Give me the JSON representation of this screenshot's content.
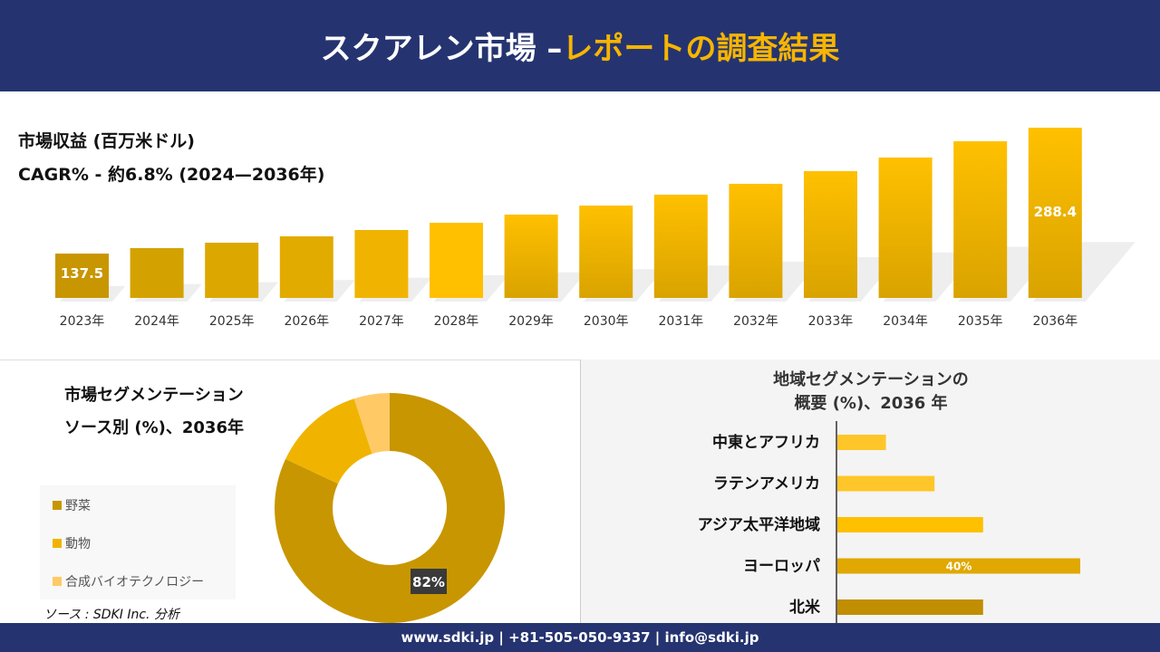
{
  "header": {
    "title_main": "スクアレン市場 –",
    "title_highlight": "レポートの調査結果"
  },
  "revenue": {
    "title": "市場収益 (百万米ドル)",
    "cagr": "CAGR% - 約6.8% (2024—2036年)"
  },
  "chart_data": [
    {
      "type": "bar",
      "categories": [
        "2023年",
        "2024年",
        "2025年",
        "2026年",
        "2027年",
        "2028年",
        "2029年",
        "2030年",
        "2031年",
        "2032年",
        "2033年",
        "2034年",
        "2035年",
        "2036年"
      ],
      "values": [
        137.5,
        144.1,
        150.6,
        158.2,
        165.8,
        174.5,
        184.3,
        195.1,
        208.2,
        221.2,
        236.4,
        252.7,
        272.2,
        288.4
      ],
      "data_labels": {
        "0": "137.5",
        "13": "288.4"
      },
      "ylabel": "",
      "xlabel": ""
    },
    {
      "type": "pie",
      "title": "市場セグメンテーション ソース別 (%)、2036年",
      "labels": [
        "野菜",
        "動物",
        "合成バイオテクノロジー"
      ],
      "values": [
        82,
        13,
        5
      ],
      "colors": [
        "#c89600",
        "#f0b400",
        "#ffc966"
      ],
      "data_label": "82%"
    },
    {
      "type": "bar",
      "orientation": "horizontal",
      "title": "地域セグメンテーションの概要 (%)、2036 年",
      "categories": [
        "中東とアフリカ",
        "ラテンアメリカ",
        "アジア太平洋地域",
        "ヨーロッパ",
        "北米"
      ],
      "values": [
        8,
        16,
        24,
        40,
        24
      ],
      "colors": [
        "#ffc629",
        "#ffc629",
        "#ffc000",
        "#e0a800",
        "#c08e00"
      ],
      "data_label": "40%"
    }
  ],
  "donut": {
    "title_line1": "市場セグメンテーション",
    "title_line2": "ソース別 (%)、2036年"
  },
  "region": {
    "title_line1": "地域セグメンテーションの",
    "title_line2": "概要 (%)、2036 年"
  },
  "source": "ソース : SDKI Inc. 分析",
  "footer": "www.sdki.jp | +81-505-050-9337 | info@sdki.jp"
}
